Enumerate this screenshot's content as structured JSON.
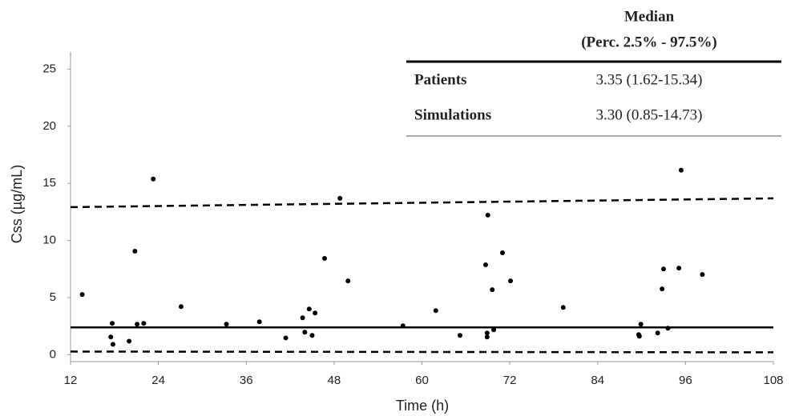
{
  "chart_data": {
    "type": "scatter",
    "xlabel": "Time (h)",
    "ylabel": "Css (µg/mL)",
    "xlim": [
      12,
      108
    ],
    "xticks": [
      12,
      24,
      36,
      48,
      60,
      72,
      84,
      96,
      108
    ],
    "ylim": [
      -0.6,
      26.5
    ],
    "yticks": [
      0,
      5,
      10,
      15,
      20,
      25
    ],
    "color": "#000000",
    "x": [
      13.6,
      17.7,
      17.5,
      17.8,
      20.0,
      20.8,
      21.1,
      22.0,
      23.3,
      27.1,
      33.3,
      37.8,
      41.4,
      43.7,
      44.0,
      44.6,
      45.0,
      45.4,
      46.7,
      48.8,
      49.9,
      57.4,
      61.9,
      65.2,
      68.7,
      68.9,
      69.0,
      68.9,
      69.6,
      69.8,
      71.0,
      72.1,
      79.3,
      89.6,
      89.7,
      89.9,
      92.2,
      92.8,
      93.0,
      93.6,
      95.1,
      95.4,
      98.3
    ],
    "y": [
      5.27,
      2.74,
      1.55,
      0.91,
      1.19,
      9.06,
      2.67,
      2.74,
      15.38,
      4.21,
      2.67,
      2.88,
      1.47,
      3.23,
      1.97,
      4.0,
      1.69,
      3.65,
      8.43,
      13.69,
      6.46,
      2.53,
      3.86,
      1.69,
      7.87,
      1.9,
      12.22,
      1.55,
      5.69,
      2.18,
      8.92,
      6.46,
      4.14,
      1.76,
      1.62,
      2.67,
      1.9,
      5.76,
      7.51,
      2.32,
      7.58,
      16.15,
      7.02
    ],
    "lines": [
      {
        "x": [
          12,
          108
        ],
        "y": [
          12.92,
          13.69
        ],
        "style": "dashed"
      },
      {
        "x": [
          12,
          108
        ],
        "y": [
          2.39,
          2.39
        ],
        "style": "solid"
      },
      {
        "x": [
          12,
          108
        ],
        "y": [
          0.28,
          0.21
        ],
        "style": "dashed"
      }
    ],
    "table": {
      "header": [
        "Median",
        "(Perc. 2.5% - 97.5%)"
      ],
      "rows": [
        [
          "Patients",
          "3.35 (1.62-15.34)"
        ],
        [
          "Simulations",
          "3.30 (0.85-14.73)"
        ]
      ]
    }
  }
}
